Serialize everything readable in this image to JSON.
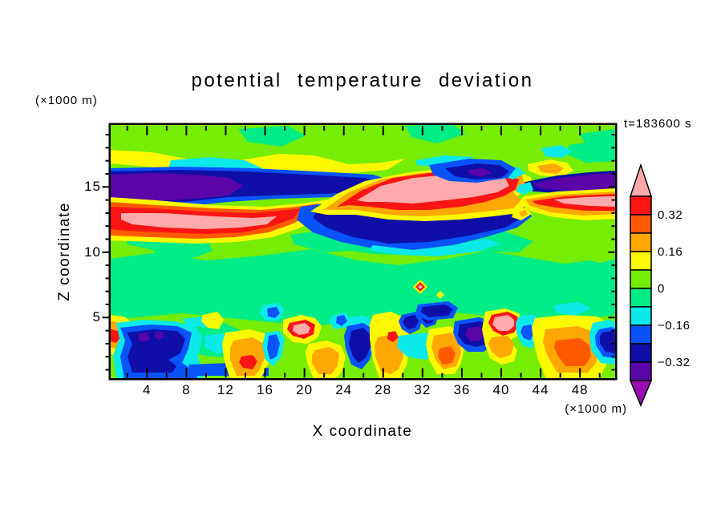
{
  "title": "potential temperature deviation",
  "time_label": "t=183600 s",
  "y_axis": {
    "title": "Z coordinate",
    "unit_label": "(×1000 m)",
    "tick_values": [
      5,
      10,
      15
    ],
    "tick_labels": [
      "5",
      "10",
      "15"
    ],
    "minor_tick_step": 1
  },
  "x_axis": {
    "title": "X coordinate",
    "unit_label": "(×1000 m)",
    "tick_values": [
      4,
      8,
      12,
      16,
      20,
      24,
      28,
      32,
      36,
      40,
      44,
      48
    ],
    "tick_labels": [
      "4",
      "8",
      "12",
      "16",
      "20",
      "24",
      "28",
      "32",
      "36",
      "40",
      "44",
      "48"
    ],
    "minor_tick_step": 2
  },
  "palette": {
    "pink": "#ffaaaa",
    "red": "#fa1414",
    "orangered": "#ff5a00",
    "orange": "#ffa702",
    "yellow": "#fcf802",
    "chartreuse": "#76ed05",
    "springgreen": "#00ec86",
    "cyan": "#0ce9e9",
    "blue": "#0853fa",
    "navy": "#0f0fa8",
    "violet": "#5a05a8",
    "purple": "#9a0cb4"
  },
  "colorbar": {
    "box_colors": [
      "red",
      "orangered",
      "orange",
      "yellow",
      "chartreuse",
      "springgreen",
      "cyan",
      "blue",
      "navy",
      "violet"
    ],
    "arrow_top_color": "pink",
    "arrow_bottom_color": "purple",
    "tick_labels": [
      "0.32",
      "0.16",
      "0",
      "−0.16",
      "−0.32"
    ]
  },
  "chart_data": {
    "type": "heatmap",
    "subtype": "filled-contour",
    "title": "potential temperature deviation",
    "xlabel": "X coordinate",
    "x_unit": "(×1000 m)",
    "ylabel": "Z coordinate",
    "y_unit": "(×1000 m)",
    "annotation": "t=183600 s",
    "xlim": [
      0,
      51
    ],
    "ylim": [
      0,
      19.5
    ],
    "x_ticks": [
      4,
      8,
      12,
      16,
      20,
      24,
      28,
      32,
      36,
      40,
      44,
      48
    ],
    "y_ticks": [
      5,
      10,
      15
    ],
    "contour_interval": 0.08,
    "labeled_levels": [
      0.32,
      0.16,
      0,
      -0.16,
      -0.32
    ],
    "levels": [
      {
        "range": "> 0.40",
        "color_name": "pink"
      },
      {
        "range": "0.32 to 0.40",
        "color_name": "red"
      },
      {
        "range": "0.24 to 0.32",
        "color_name": "orangered"
      },
      {
        "range": "0.16 to 0.24",
        "color_name": "orange"
      },
      {
        "range": "0.08 to 0.16",
        "color_name": "yellow"
      },
      {
        "range": "0 to 0.08",
        "color_name": "chartreuse"
      },
      {
        "range": "-0.08 to 0",
        "color_name": "springgreen"
      },
      {
        "range": "-0.16 to -0.08",
        "color_name": "cyan"
      },
      {
        "range": "-0.24 to -0.16",
        "color_name": "blue"
      },
      {
        "range": "-0.32 to -0.24",
        "color_name": "navy"
      },
      {
        "range": "-0.40 to -0.32",
        "color_name": "violet"
      },
      {
        "range": "< -0.40",
        "color_name": "purple"
      }
    ],
    "features": [
      "gravity-wave band between z=12 and z=17 km with alternating warm and cold anomalies",
      "cold core < -0.40 at x=0-14, z=14-16 (violet/purple blob, left)",
      "warm core > 0.40 at x=1-17, z=12-13.5 (pink band, left)",
      "warm core > 0.40 at x=23-42, z=14.5-16.5 (long central pink band)",
      "cold core < -0.32 at x=24-43, z=12.5-14.5 (large navy band under central pink band)",
      "cold blob with < -0.40 spots at x=32-40, z=16-17 above central pink band",
      "cold core < -0.40 at x=43-51, z=14-15.5 over warm core > 0.40 at x=43-51, z=12.5-14 (right section)",
      "near-neutral interior (-0.08 to +0.08 greens) between z=4.5 and z=11.5 with small warm spot near x=31, z=7.5",
      "shallow convective layer below z=4 km with alternating warm plumes (orange/red/pink near x=1,13,19,22,28,32,38,44) and cold plumes (blue/navy/violet near x=3-6,24,30,35,48)"
    ]
  }
}
